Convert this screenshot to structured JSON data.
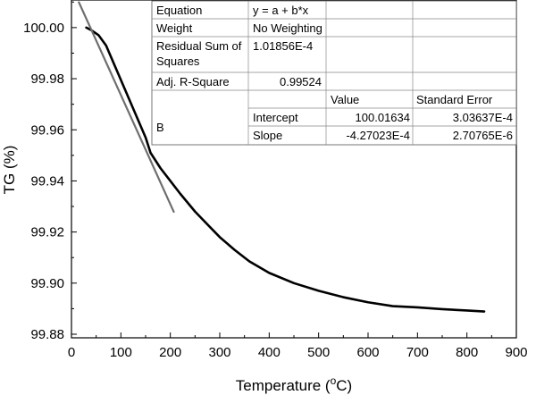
{
  "chart_data": {
    "type": "line",
    "title": "",
    "xlabel": "Temperature (°C)",
    "ylabel": "TG (%)",
    "xlim": [
      0,
      900
    ],
    "ylim": [
      99.88,
      100.01
    ],
    "x_ticks": [
      "0",
      "100",
      "200",
      "300",
      "400",
      "500",
      "600",
      "700",
      "800",
      "900"
    ],
    "y_ticks": [
      "99.88",
      "99.90",
      "99.92",
      "99.94",
      "99.96",
      "99.98",
      "100.00"
    ],
    "series": [
      {
        "color": "#000000",
        "x": [
          30,
          40,
          55,
          70,
          90,
          110,
          130,
          150,
          160,
          180,
          200,
          220,
          250,
          280,
          300,
          330,
          360,
          400,
          450,
          500,
          550,
          600,
          650,
          700,
          750,
          800,
          835
        ],
        "y": [
          100.0,
          99.999,
          99.997,
          99.993,
          99.984,
          99.975,
          99.966,
          99.957,
          99.951,
          99.945,
          99.94,
          99.935,
          99.928,
          99.922,
          99.918,
          99.913,
          99.9085,
          99.904,
          99.9,
          99.897,
          99.8945,
          99.8925,
          99.891,
          99.8905,
          99.8898,
          99.8893,
          99.8889
        ]
      },
      {
        "color": "#6e6e6e",
        "x": [
          15,
          207
        ],
        "y": [
          100.0099,
          99.9279
        ]
      }
    ],
    "fit_table": {
      "rows": [
        [
          "Equation",
          "y = a + b*x"
        ],
        [
          "Weight",
          "No Weighting"
        ],
        [
          "Residual Sum of Squares",
          "1.01856E-4"
        ],
        [
          "Adj. R-Square",
          "0.99524"
        ]
      ],
      "col_headers": [
        "Value",
        "Standard Error"
      ],
      "group_label": "B",
      "params": [
        {
          "name": "Intercept",
          "value": "100.01634",
          "error": "3.03637E-4"
        },
        {
          "name": "Slope",
          "value": "-4.27023E-4",
          "error": "2.70765E-6"
        }
      ]
    }
  }
}
